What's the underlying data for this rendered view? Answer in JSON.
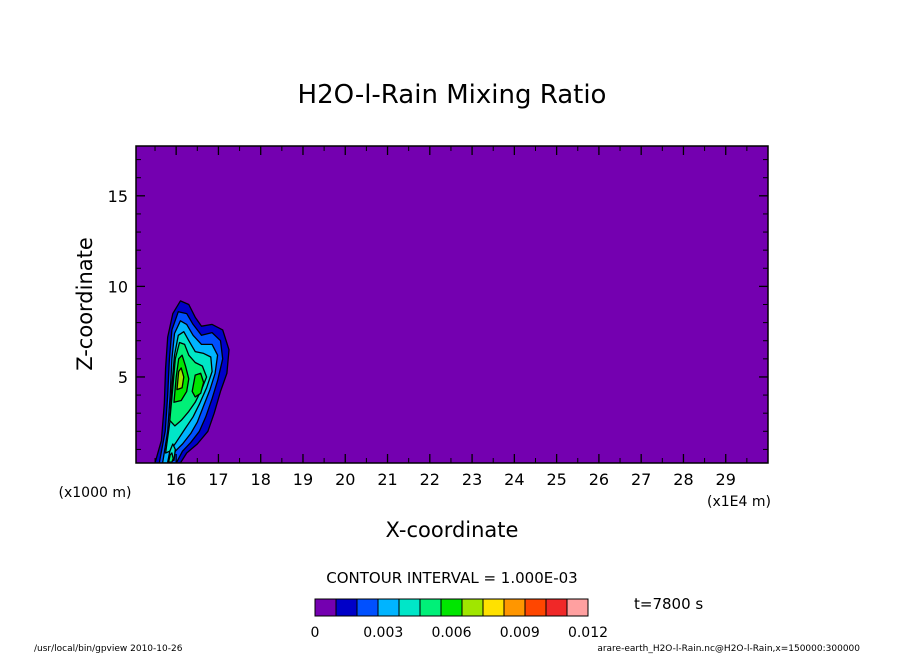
{
  "chart_data": {
    "type": "contour",
    "title": "H2O-l-Rain Mixing Ratio",
    "xlabel": "X-coordinate",
    "ylabel": "Z-coordinate",
    "x_unit_label": "(x1E4 m)",
    "y_unit_label": "(x1000 m)",
    "xlim": [
      15.05,
      30.0
    ],
    "ylim": [
      0.25,
      17.75
    ],
    "x_ticks": [
      16,
      17,
      18,
      19,
      20,
      21,
      22,
      23,
      24,
      25,
      26,
      27,
      28,
      29
    ],
    "y_ticks": [
      5,
      10,
      15
    ],
    "background_color": "#7400b0",
    "contour_interval_text": "CONTOUR INTERVAL = 1.000E-03",
    "time_label": "t=7800 s",
    "colorbar": {
      "levels": [
        0,
        0.001,
        0.002,
        0.003,
        0.004,
        0.005,
        0.006,
        0.007,
        0.008,
        0.009,
        0.01,
        0.011,
        0.012
      ],
      "tick_labels": [
        "0",
        "0.003",
        "0.006",
        "0.009",
        "0.012"
      ],
      "tick_values": [
        0,
        0.003,
        0.006,
        0.009,
        0.012
      ],
      "colors": [
        "#7400b0",
        "#0000c8",
        "#0050ff",
        "#00b4ff",
        "#00e6c8",
        "#00f078",
        "#00e600",
        "#a0e600",
        "#ffe100",
        "#ff9600",
        "#ff4600",
        "#f02828",
        "#ffa0a0"
      ]
    },
    "regions": [
      {
        "level": 1,
        "color": "#0000c8",
        "points": [
          [
            15.5,
            0.25
          ],
          [
            15.65,
            1.5
          ],
          [
            15.72,
            3.5
          ],
          [
            15.75,
            5.5
          ],
          [
            15.8,
            7.2
          ],
          [
            15.92,
            8.5
          ],
          [
            16.1,
            9.2
          ],
          [
            16.3,
            9.0
          ],
          [
            16.45,
            8.3
          ],
          [
            16.6,
            7.8
          ],
          [
            16.85,
            7.9
          ],
          [
            17.1,
            7.6
          ],
          [
            17.25,
            6.5
          ],
          [
            17.2,
            5.2
          ],
          [
            17.05,
            4.2
          ],
          [
            16.9,
            3.0
          ],
          [
            16.75,
            2.0
          ],
          [
            16.5,
            1.3
          ],
          [
            16.25,
            0.8
          ],
          [
            16.1,
            0.25
          ]
        ]
      },
      {
        "level": 2,
        "color": "#0050ff",
        "points": [
          [
            15.6,
            0.25
          ],
          [
            15.74,
            2.0
          ],
          [
            15.8,
            4.0
          ],
          [
            15.84,
            6.0
          ],
          [
            15.9,
            7.6
          ],
          [
            16.05,
            8.6
          ],
          [
            16.25,
            8.5
          ],
          [
            16.4,
            7.9
          ],
          [
            16.6,
            7.3
          ],
          [
            16.85,
            7.45
          ],
          [
            17.05,
            7.0
          ],
          [
            17.1,
            6.0
          ],
          [
            16.98,
            4.8
          ],
          [
            16.85,
            3.8
          ],
          [
            16.7,
            2.8
          ],
          [
            16.55,
            2.0
          ],
          [
            16.35,
            1.4
          ],
          [
            16.15,
            0.9
          ],
          [
            16.0,
            0.25
          ]
        ]
      },
      {
        "level": 3,
        "color": "#00b4ff",
        "points": [
          [
            15.68,
            0.25
          ],
          [
            15.8,
            2.0
          ],
          [
            15.86,
            4.0
          ],
          [
            15.9,
            6.0
          ],
          [
            15.96,
            7.4
          ],
          [
            16.1,
            8.1
          ],
          [
            16.25,
            7.9
          ],
          [
            16.4,
            7.3
          ],
          [
            16.6,
            6.8
          ],
          [
            16.85,
            6.8
          ],
          [
            16.98,
            6.2
          ],
          [
            16.92,
            5.2
          ],
          [
            16.8,
            4.3
          ],
          [
            16.65,
            3.4
          ],
          [
            16.5,
            2.5
          ],
          [
            16.35,
            1.9
          ],
          [
            16.15,
            1.3
          ],
          [
            15.98,
            0.9
          ],
          [
            15.88,
            0.25
          ]
        ]
      },
      {
        "level": 4,
        "color": "#00e6c8",
        "points": [
          [
            15.75,
            0.8
          ],
          [
            15.85,
            2.5
          ],
          [
            15.9,
            4.5
          ],
          [
            15.96,
            6.2
          ],
          [
            16.05,
            7.3
          ],
          [
            16.18,
            7.5
          ],
          [
            16.3,
            7.0
          ],
          [
            16.45,
            6.4
          ],
          [
            16.65,
            6.3
          ],
          [
            16.82,
            6.1
          ],
          [
            16.85,
            5.3
          ],
          [
            16.72,
            4.4
          ],
          [
            16.55,
            3.5
          ],
          [
            16.4,
            2.8
          ],
          [
            16.2,
            2.1
          ],
          [
            16.0,
            1.4
          ],
          [
            15.85,
            0.9
          ]
        ]
      },
      {
        "level": 5,
        "color": "#00f078",
        "points": [
          [
            15.85,
            2.6
          ],
          [
            15.92,
            4.4
          ],
          [
            15.98,
            6.0
          ],
          [
            16.08,
            6.9
          ],
          [
            16.2,
            6.8
          ],
          [
            16.3,
            6.2
          ],
          [
            16.45,
            5.8
          ],
          [
            16.62,
            5.6
          ],
          [
            16.72,
            5.0
          ],
          [
            16.6,
            4.3
          ],
          [
            16.45,
            3.6
          ],
          [
            16.3,
            3.1
          ],
          [
            16.12,
            2.6
          ],
          [
            15.97,
            2.3
          ]
        ]
      },
      {
        "level": 6,
        "color": "#00e600",
        "points": [
          [
            15.95,
            3.6
          ],
          [
            16.0,
            5.0
          ],
          [
            16.06,
            6.0
          ],
          [
            16.14,
            6.2
          ],
          [
            16.22,
            5.6
          ],
          [
            16.3,
            4.9
          ],
          [
            16.25,
            4.2
          ],
          [
            16.12,
            3.7
          ]
        ]
      },
      {
        "level": 6,
        "color": "#00e600",
        "points": [
          [
            16.38,
            4.2
          ],
          [
            16.45,
            5.1
          ],
          [
            16.58,
            5.2
          ],
          [
            16.65,
            4.7
          ],
          [
            16.58,
            4.1
          ],
          [
            16.45,
            3.9
          ]
        ]
      },
      {
        "level": 7,
        "color": "#a0e600",
        "points": [
          [
            16.02,
            4.3
          ],
          [
            16.06,
            5.3
          ],
          [
            16.12,
            5.5
          ],
          [
            16.18,
            5.0
          ],
          [
            16.14,
            4.4
          ]
        ]
      },
      {
        "level": 4,
        "color": "#00e6c8",
        "points": [
          [
            15.8,
            0.3
          ],
          [
            15.85,
            0.9
          ],
          [
            15.92,
            1.3
          ],
          [
            15.98,
            1.0
          ],
          [
            15.95,
            0.4
          ]
        ]
      },
      {
        "level": 5,
        "color": "#00f078",
        "points": [
          [
            15.82,
            0.3
          ],
          [
            15.86,
            0.7
          ],
          [
            15.9,
            0.8
          ],
          [
            15.93,
            0.5
          ],
          [
            15.9,
            0.3
          ]
        ]
      }
    ]
  },
  "footer": {
    "left": "/usr/local/bin/gpview  2010-10-26",
    "right": "arare-earth_H2O-l-Rain.nc@H2O-l-Rain,x=150000:300000"
  }
}
